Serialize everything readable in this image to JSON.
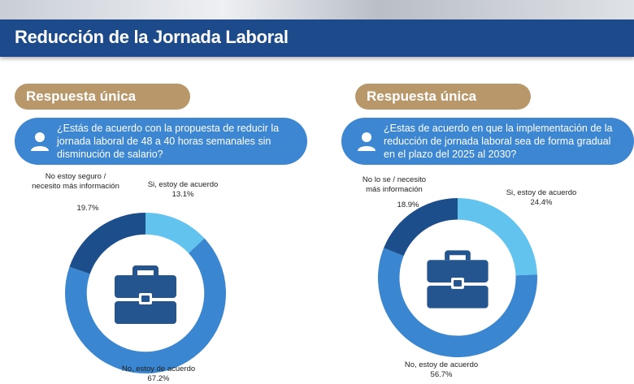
{
  "header": {
    "title": "Reducción de la Jornada Laboral"
  },
  "colors": {
    "header_bg": "#1c4a8a",
    "tag_bg": "#b8986a",
    "question_bg": "#3d86d2",
    "no": "#3b86d1",
    "yes": "#62c3ee",
    "unsure": "#1d4e8c",
    "icon": "#24558f"
  },
  "panels": [
    {
      "tag": "Respuesta única",
      "question": "¿Estás de acuerdo con la propuesta de reducir la jornada laboral de 48 a 40 horas semanales sin disminución de salario?",
      "labels": {
        "unsure_line1": "No estoy seguro /",
        "unsure_line2": "necesito más información",
        "unsure_pct": "19.7%",
        "yes_line1": "Si, estoy de acuerdo",
        "yes_pct": "13.1%",
        "no_line1": "No, estoy de acuerdo",
        "no_pct": "67.2%"
      }
    },
    {
      "tag": "Respuesta única",
      "question": "¿Estas de acuerdo en que la implementación de la reducción de jornada laboral sea de forma gradual en el plazo del 2025 al 2030?",
      "labels": {
        "unsure_line1": "No lo se / necesito",
        "unsure_line2": "más información",
        "unsure_pct": "18.9%",
        "yes_line1": "Si, estoy de acuerdo",
        "yes_pct": "24.4%",
        "no_line1": "No, estoy de acuerdo",
        "no_pct": "56.7%"
      }
    }
  ],
  "chart_data": [
    {
      "type": "pie",
      "categories": [
        "Si, estoy de acuerdo",
        "No, estoy de acuerdo",
        "No estoy seguro / necesito más información"
      ],
      "values": [
        13.1,
        67.2,
        19.7
      ],
      "colors": [
        "#62c3ee",
        "#3b86d1",
        "#1d4e8c"
      ],
      "donut": true,
      "center_icon": "briefcase-icon"
    },
    {
      "type": "pie",
      "categories": [
        "Si, estoy de acuerdo",
        "No, estoy de acuerdo",
        "No lo se / necesito más información"
      ],
      "values": [
        24.4,
        56.7,
        18.9
      ],
      "colors": [
        "#62c3ee",
        "#3b86d1",
        "#1d4e8c"
      ],
      "donut": true,
      "center_icon": "briefcase-icon"
    }
  ]
}
